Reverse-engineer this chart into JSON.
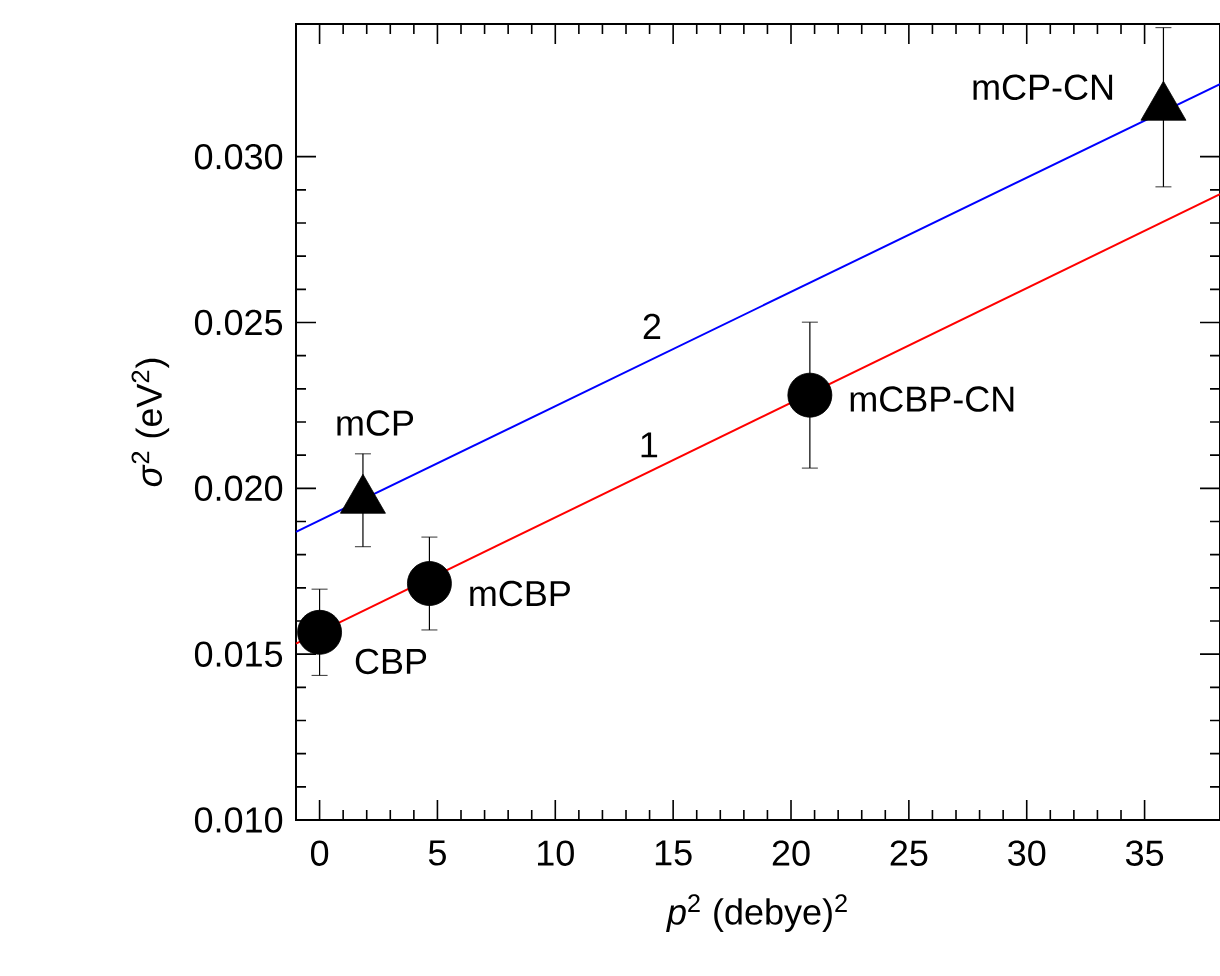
{
  "chart_data": {
    "type": "scatter",
    "xlabel": "*p*$^{2}$ (debye)$^{2}$",
    "ylabel": "*σ*$^{2}$ (eV$^{2}$)",
    "xlim": [
      -1,
      38.2
    ],
    "ylim": [
      0.01,
      0.034
    ],
    "xticks": [
      0,
      5,
      10,
      15,
      20,
      25,
      30,
      35
    ],
    "yticks": [
      {
        "value": 0.01,
        "label": "0.010"
      },
      {
        "value": 0.015,
        "label": "0.015"
      },
      {
        "value": 0.02,
        "label": "0.020"
      },
      {
        "value": 0.025,
        "label": "0.025"
      },
      {
        "value": 0.03,
        "label": "0.030"
      }
    ],
    "grid": false,
    "series": [
      {
        "marker": "circle",
        "color": "#000000",
        "x": [
          0,
          4.66,
          20.8
        ],
        "values": [
          0.01566,
          0.01713,
          0.02281
        ],
        "errors": [
          0.0013,
          0.0014,
          0.0022
        ]
      },
      {
        "marker": "triangle",
        "color": "#000000",
        "x": [
          1.84,
          35.8
        ],
        "values": [
          0.01964,
          0.03149
        ],
        "errors": [
          0.0014,
          0.0024
        ]
      },
      {
        "type": "line",
        "line_style": "solid",
        "color": "#ff0000",
        "x": [
          -1,
          38.2
        ],
        "values": [
          0.01532,
          0.02887
        ]
      },
      {
        "type": "line",
        "line_style": "solid",
        "color": "#0000ff",
        "x": [
          -1,
          38.2
        ],
        "values": [
          0.01869,
          0.03219
        ]
      }
    ],
    "annotations": [
      {
        "text": "CBP",
        "x": 0,
        "y": 0.01566
      },
      {
        "text": "mCBP",
        "x": 4.66,
        "y": 0.01713
      },
      {
        "text": "mCBP-CN",
        "x": 20.8,
        "y": 0.02281
      },
      {
        "text": "mCP",
        "x": 1.84,
        "y": 0.01964
      },
      {
        "text": "mCP-CN",
        "x": 35.8,
        "y": 0.03149
      },
      {
        "text": "1",
        "x": 13.8,
        "y": 0.02044
      },
      {
        "text": "2",
        "x": 14.1,
        "y": 0.02389
      }
    ]
  }
}
